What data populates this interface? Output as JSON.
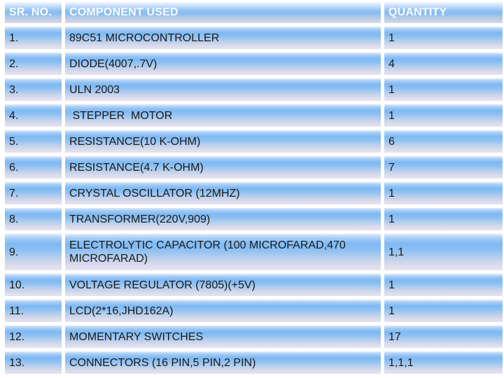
{
  "slide": {
    "background": "#ffffff"
  },
  "table": {
    "columns": [
      {
        "label": "SR. NO."
      },
      {
        "label": "COMPONENT USED"
      },
      {
        "label": "QUANTITY"
      }
    ],
    "rows": [
      {
        "sr": "1.",
        "component": "89C51 MICROCONTROLLER",
        "quantity": "1"
      },
      {
        "sr": "2.",
        "component": "DIODE(4007,.7V)",
        "quantity": "4"
      },
      {
        "sr": "3.",
        "component": "ULN 2003",
        "quantity": "1"
      },
      {
        "sr": "4.",
        "component": " STEPPER  MOTOR",
        "quantity": "1"
      },
      {
        "sr": "5.",
        "component": "RESISTANCE(10 K-OHM)",
        "quantity": "6"
      },
      {
        "sr": "6.",
        "component": "RESISTANCE(4.7 K-OHM)",
        "quantity": "7"
      },
      {
        "sr": "7.",
        "component": "CRYSTAL OSCILLATOR (12MHZ)",
        "quantity": "1"
      },
      {
        "sr": "8.",
        "component": "TRANSFORMER(220V,909)",
        "quantity": "1"
      },
      {
        "sr": "9.",
        "component": "ELECTROLYTIC CAPACITOR (100 MICROFARAD,470\nMICROFARAD)",
        "quantity": "1,1"
      },
      {
        "sr": "10.",
        "component": "VOLTAGE REGULATOR (7805)(+5V)",
        "quantity": "1"
      },
      {
        "sr": "11.",
        "component": "LCD(2*16,JHD162A)",
        "quantity": "1"
      },
      {
        "sr": "12.",
        "component": "MOMENTARY SWITCHES",
        "quantity": "17"
      },
      {
        "sr": "13.",
        "component": "CONNECTORS (16 PIN,5 PIN,2 PIN)",
        "quantity": "1,1,1"
      }
    ]
  },
  "colors": {
    "cell_blue": "#7db9f3",
    "cell_top": "#e2ecf9",
    "cell_bottom": "#e6e2f0",
    "header_blue": "#83bbf1",
    "header_bottom": "#d6d9e9",
    "header_text": "#fafcff",
    "body_text": "#1a1a1a",
    "divider": "#ffffff"
  }
}
